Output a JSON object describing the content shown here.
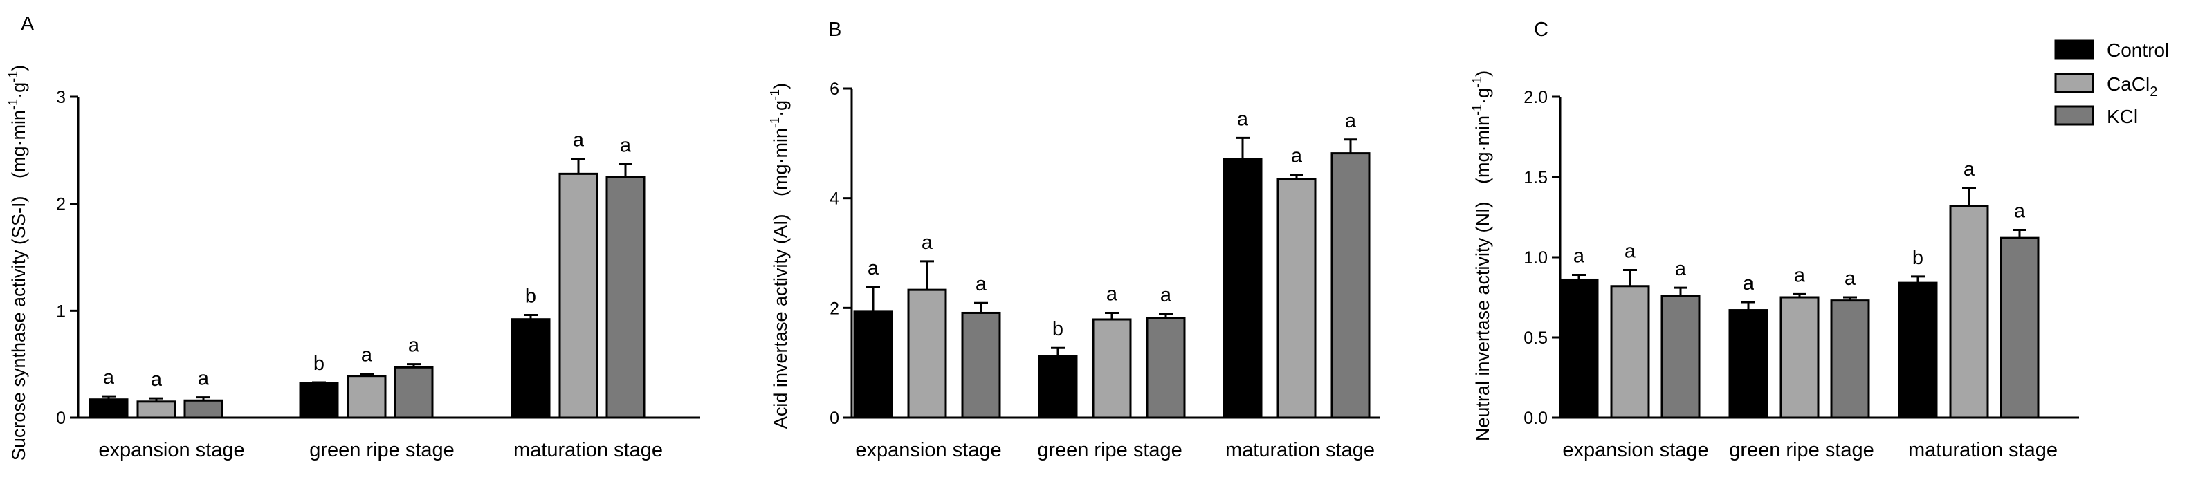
{
  "chart_data": [
    {
      "type": "bar",
      "panel": "A",
      "ylabel_main": "Sucrose synthase activity (SS-I)",
      "ylabel_unit_prefix": "mg·min",
      "ylabel_unit_sup1": "-1",
      "ylabel_unit_mid": "·g",
      "ylabel_unit_sup2": "-1",
      "categories": [
        "expansion stage",
        "green ripe stage",
        "maturation stage"
      ],
      "ylim": [
        0,
        3
      ],
      "yticks": [
        0,
        1,
        2,
        3
      ],
      "ytick_labels": [
        "0",
        "1",
        "2",
        "3"
      ],
      "series": [
        {
          "name": "Control",
          "values": [
            0.17,
            0.32,
            0.92
          ],
          "errors": [
            0.03,
            0.01,
            0.04
          ],
          "labels": [
            "a",
            "b",
            "b"
          ]
        },
        {
          "name": "CaCl2",
          "values": [
            0.15,
            0.39,
            2.28
          ],
          "errors": [
            0.03,
            0.02,
            0.14
          ],
          "labels": [
            "a",
            "a",
            "a"
          ]
        },
        {
          "name": "KCl",
          "values": [
            0.16,
            0.47,
            2.25
          ],
          "errors": [
            0.03,
            0.03,
            0.12
          ],
          "labels": [
            "a",
            "a",
            "a"
          ]
        }
      ]
    },
    {
      "type": "bar",
      "panel": "B",
      "ylabel_main": "Acid invertase activity (AI)",
      "ylabel_unit_prefix": "mg·min",
      "ylabel_unit_sup1": "-1",
      "ylabel_unit_mid": "·g",
      "ylabel_unit_sup2": "-1",
      "categories": [
        "expansion stage",
        "green ripe stage",
        "maturation stage"
      ],
      "ylim": [
        0,
        6
      ],
      "yticks": [
        0,
        2,
        4,
        6
      ],
      "ytick_labels": [
        "0",
        "2",
        "4",
        "6"
      ],
      "series": [
        {
          "name": "Control",
          "values": [
            1.93,
            1.12,
            4.72
          ],
          "errors": [
            0.45,
            0.15,
            0.38
          ],
          "labels": [
            "a",
            "b",
            "a"
          ]
        },
        {
          "name": "CaCl2",
          "values": [
            2.33,
            1.79,
            4.35
          ],
          "errors": [
            0.52,
            0.12,
            0.08
          ],
          "labels": [
            "a",
            "a",
            "a"
          ]
        },
        {
          "name": "KCl",
          "values": [
            1.91,
            1.81,
            4.82
          ],
          "errors": [
            0.18,
            0.08,
            0.25
          ],
          "labels": [
            "a",
            "a",
            "a"
          ]
        }
      ]
    },
    {
      "type": "bar",
      "panel": "C",
      "ylabel_main": "Neutral invertase activity (NI)",
      "ylabel_unit_prefix": "mg·min",
      "ylabel_unit_sup1": "-1",
      "ylabel_unit_mid": "·g",
      "ylabel_unit_sup2": "-1",
      "categories": [
        "expansion stage",
        "green ripe stage",
        "maturation stage"
      ],
      "ylim": [
        0,
        2
      ],
      "yticks": [
        0,
        0.5,
        1,
        1.5,
        2
      ],
      "ytick_labels": [
        "0.0",
        "0.5",
        "1.0",
        "1.5",
        "2.0"
      ],
      "series": [
        {
          "name": "Control",
          "values": [
            0.86,
            0.67,
            0.84
          ],
          "errors": [
            0.03,
            0.05,
            0.04
          ],
          "labels": [
            "a",
            "a",
            "b"
          ]
        },
        {
          "name": "CaCl2",
          "values": [
            0.82,
            0.75,
            1.32
          ],
          "errors": [
            0.1,
            0.02,
            0.11
          ],
          "labels": [
            "a",
            "a",
            "a"
          ]
        },
        {
          "name": "KCl",
          "values": [
            0.76,
            0.73,
            1.12
          ],
          "errors": [
            0.05,
            0.02,
            0.05
          ],
          "labels": [
            "a",
            "a",
            "a"
          ]
        }
      ]
    }
  ],
  "legend": {
    "items": [
      {
        "label": "Control",
        "sub": "",
        "color": "#000000"
      },
      {
        "label": "CaCl",
        "sub": "2",
        "color": "#a6a6a6"
      },
      {
        "label": "KCl",
        "sub": "",
        "color": "#7a7a7a"
      }
    ]
  },
  "colors": {
    "Control": "#000000",
    "CaCl2": "#a6a6a6",
    "KCl": "#7a7a7a",
    "axis": "#000000"
  }
}
